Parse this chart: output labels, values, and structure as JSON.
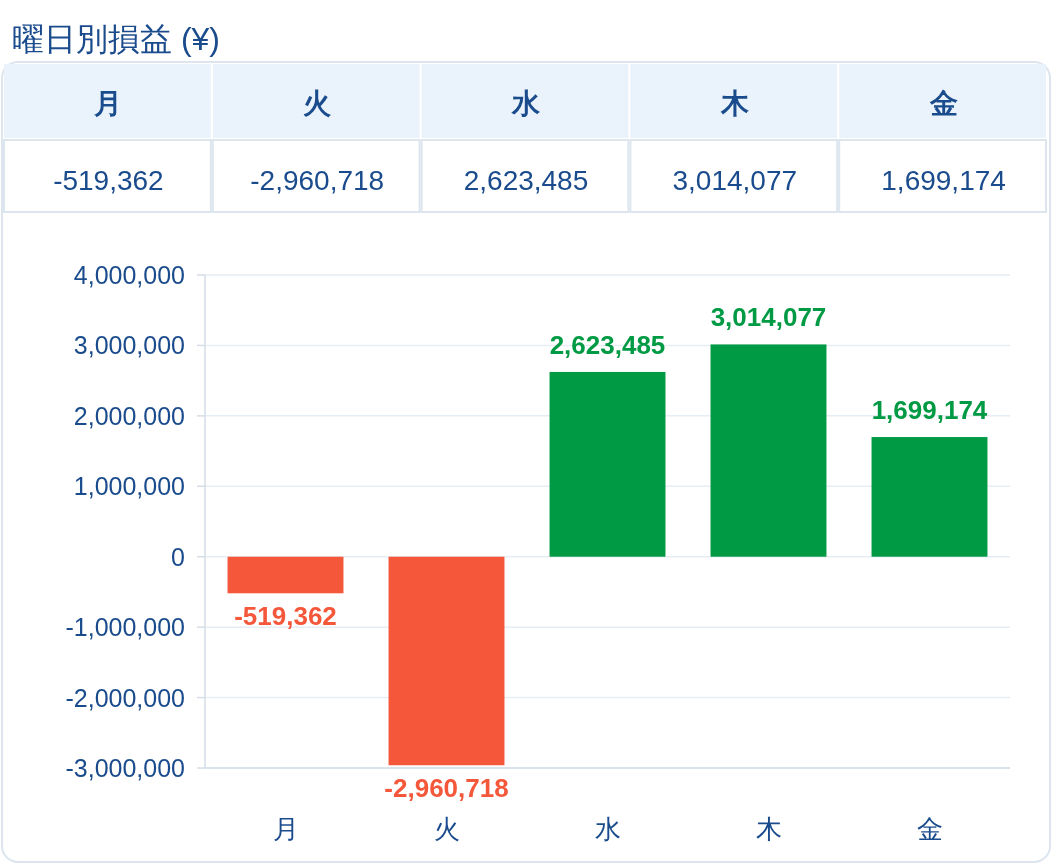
{
  "chart_data": {
    "type": "bar",
    "title": "曜日別損益 (¥)",
    "categories": [
      "月",
      "火",
      "水",
      "木",
      "金"
    ],
    "values": [
      -519362,
      -2960718,
      2623485,
      3014077,
      1699174
    ],
    "colors": [
      "#f5573b",
      "#f5573b",
      "#009a44",
      "#009a44",
      "#009a44"
    ],
    "ylim": [
      -3000000,
      4000000
    ],
    "yticks": [
      {
        "value": -3000000,
        "label": "-3,000,000"
      },
      {
        "value": -2000000,
        "label": "-2,000,000"
      },
      {
        "value": -1000000,
        "label": "-1,000,000"
      },
      {
        "value": 0,
        "label": "0"
      },
      {
        "value": 1000000,
        "label": "1,000,000"
      },
      {
        "value": 2000000,
        "label": "2,000,000"
      },
      {
        "value": 3000000,
        "label": "3,000,000"
      },
      {
        "value": 4000000,
        "label": "4,000,000"
      }
    ],
    "grid": "y",
    "value_labels": [
      "-519,362",
      "-2,960,718",
      "2,623,485",
      "3,014,077",
      "1,699,174"
    ]
  }
}
